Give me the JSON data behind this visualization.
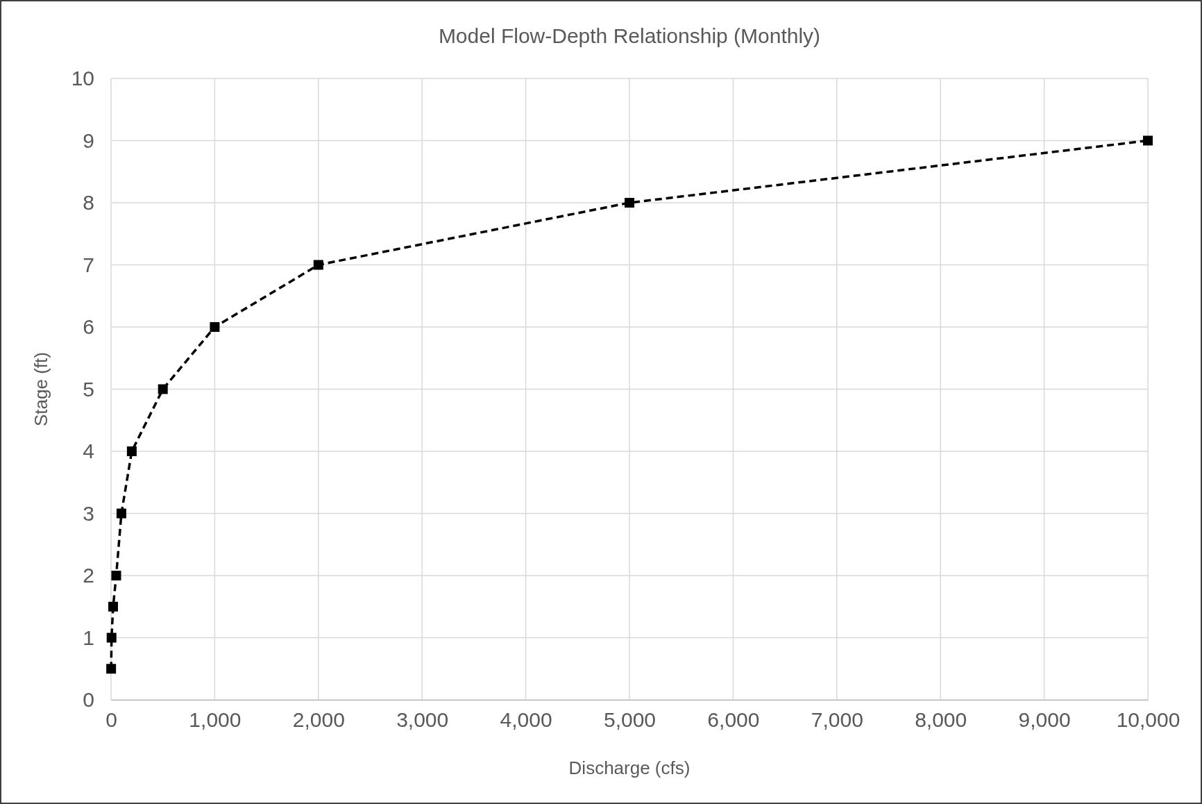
{
  "chart_data": {
    "type": "line",
    "title": "Model Flow-Depth Relationship (Monthly)",
    "xlabel": "Discharge (cfs)",
    "ylabel": "Stage (ft)",
    "x": [
      1,
      5,
      20,
      50,
      100,
      200,
      500,
      1000,
      2000,
      5000,
      10000
    ],
    "series": [
      {
        "color": "#000000",
        "values": [
          0.5,
          1,
          1.5,
          2,
          3,
          4,
          5,
          6,
          7,
          8,
          9
        ]
      }
    ],
    "xlim": [
      0,
      10000
    ],
    "xticks": [
      0,
      {
        "value": 1000,
        "label": "1,000"
      },
      {
        "value": 2000,
        "label": "2,000"
      },
      {
        "value": 3000,
        "label": "3,000"
      },
      {
        "value": 4000,
        "label": "4,000"
      },
      {
        "value": 5000,
        "label": "5,000"
      },
      {
        "value": 6000,
        "label": "6,000"
      },
      {
        "value": 7000,
        "label": "7,000"
      },
      {
        "value": 8000,
        "label": "8,000"
      },
      {
        "value": 9000,
        "label": "9,000"
      },
      {
        "value": 10000,
        "label": "10,000"
      }
    ],
    "ylim": [
      0,
      10
    ],
    "yticks": [
      0,
      1,
      2,
      3,
      4,
      5,
      6,
      7,
      8,
      9,
      10
    ],
    "grid": true,
    "marker": "square",
    "line_style": "dashed"
  }
}
